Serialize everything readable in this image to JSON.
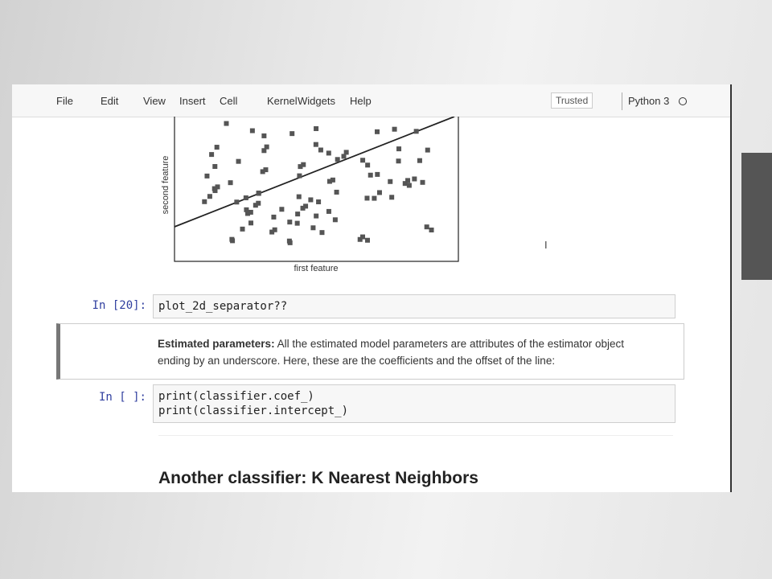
{
  "menu": [
    "File",
    "Edit",
    "View",
    "Insert",
    "Cell",
    "Kernel",
    "Widgets",
    "Help"
  ],
  "trusted": "Trusted",
  "kernel": "Python 3",
  "plot": {
    "xlabel": "first feature",
    "ylabel": "second feature"
  },
  "cells": [
    {
      "prompt": "In [20]:",
      "code": [
        "plot_2d_separator??"
      ]
    },
    {
      "bold": "Estimated parameters:",
      "lines": [
        "All the estimated model parameters are attributes of the estimator object",
        "ending by an underscore. Here, these are the coefficients and the offset of the line:"
      ]
    },
    {
      "prompt": "In [ ]:",
      "code": [
        "print(classifier.coef_)",
        "print(classifier.intercept_)"
      ]
    }
  ],
  "heading": "Another classifier: K Nearest Neighbors"
}
